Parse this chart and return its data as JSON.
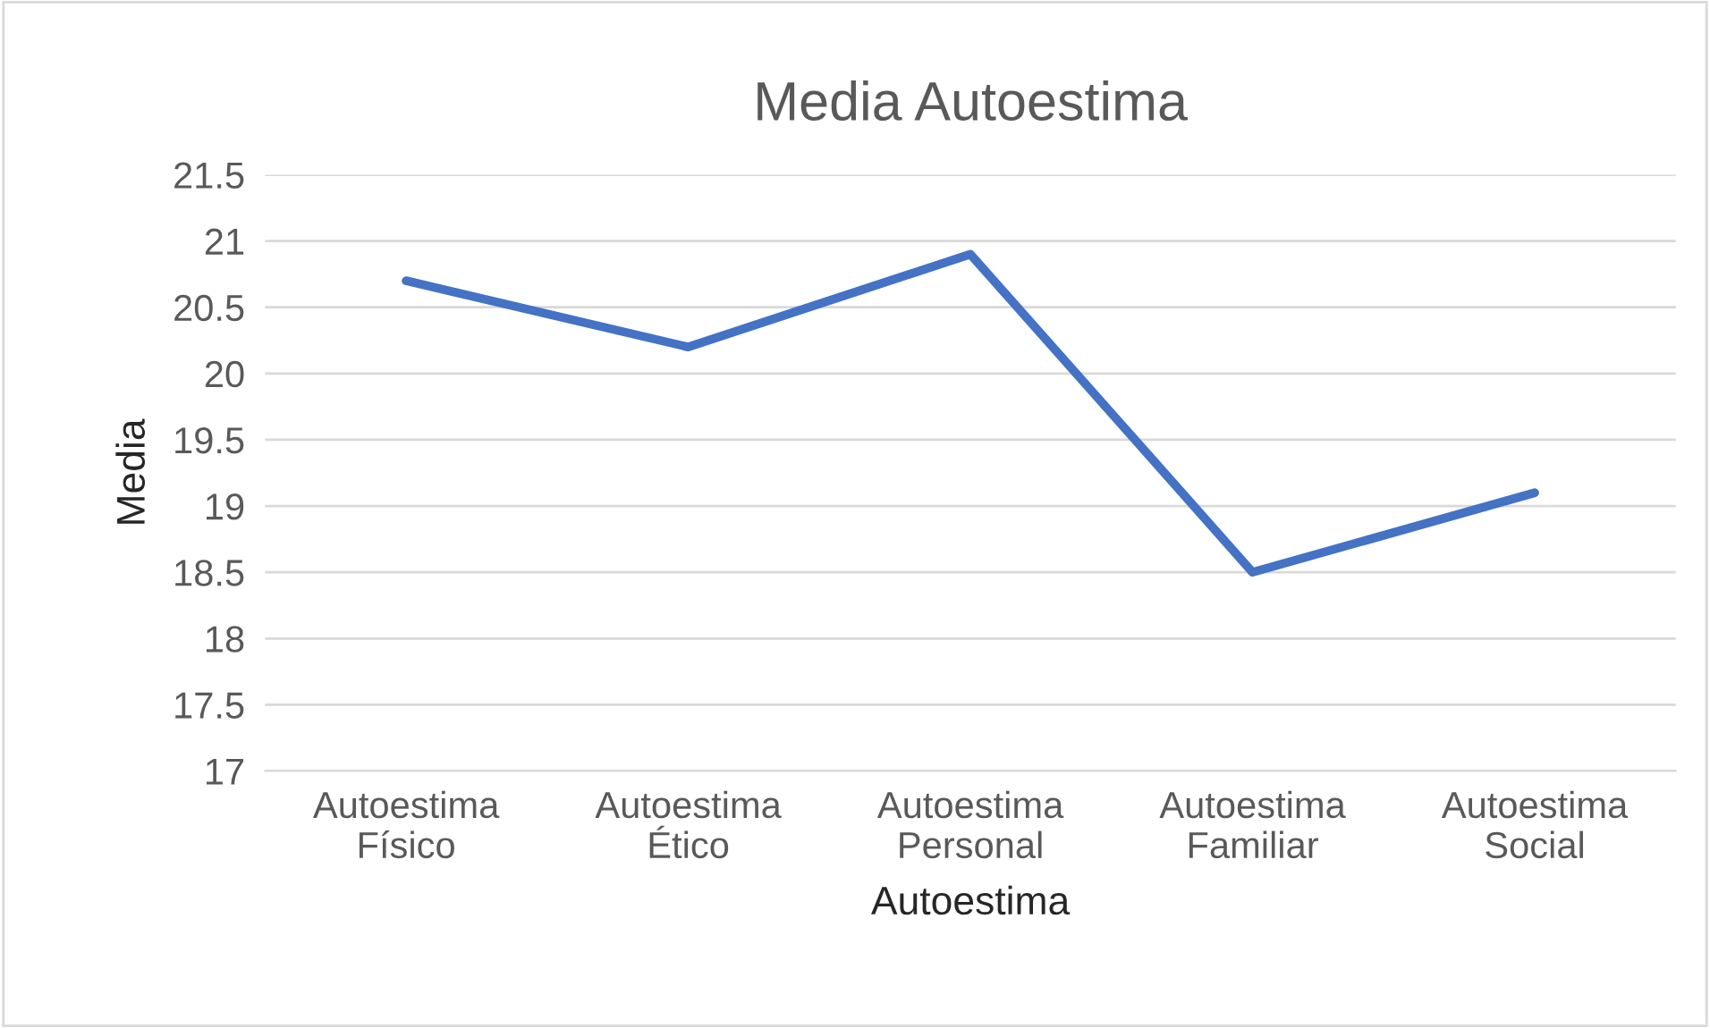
{
  "chart_data": {
    "type": "line",
    "title": "Media Autoestima",
    "xlabel": "Autoestima",
    "ylabel": "Media",
    "categories": [
      "Autoestima\nFísico",
      "Autoestima\nÉtico",
      "Autoestima\nPersonal",
      "Autoestima\nFamiliar",
      "Autoestima\nSocial"
    ],
    "series": [
      {
        "color": "#4472c4",
        "values": [
          20.7,
          20.2,
          20.9,
          18.5,
          19.1
        ]
      }
    ],
    "ylim": [
      17,
      21.5
    ],
    "yticks": [
      17,
      17.5,
      18,
      18.5,
      19,
      19.5,
      20,
      20.5,
      21,
      21.5
    ],
    "grid": "y",
    "legend": false,
    "marker": "none",
    "line_style": "solid"
  }
}
